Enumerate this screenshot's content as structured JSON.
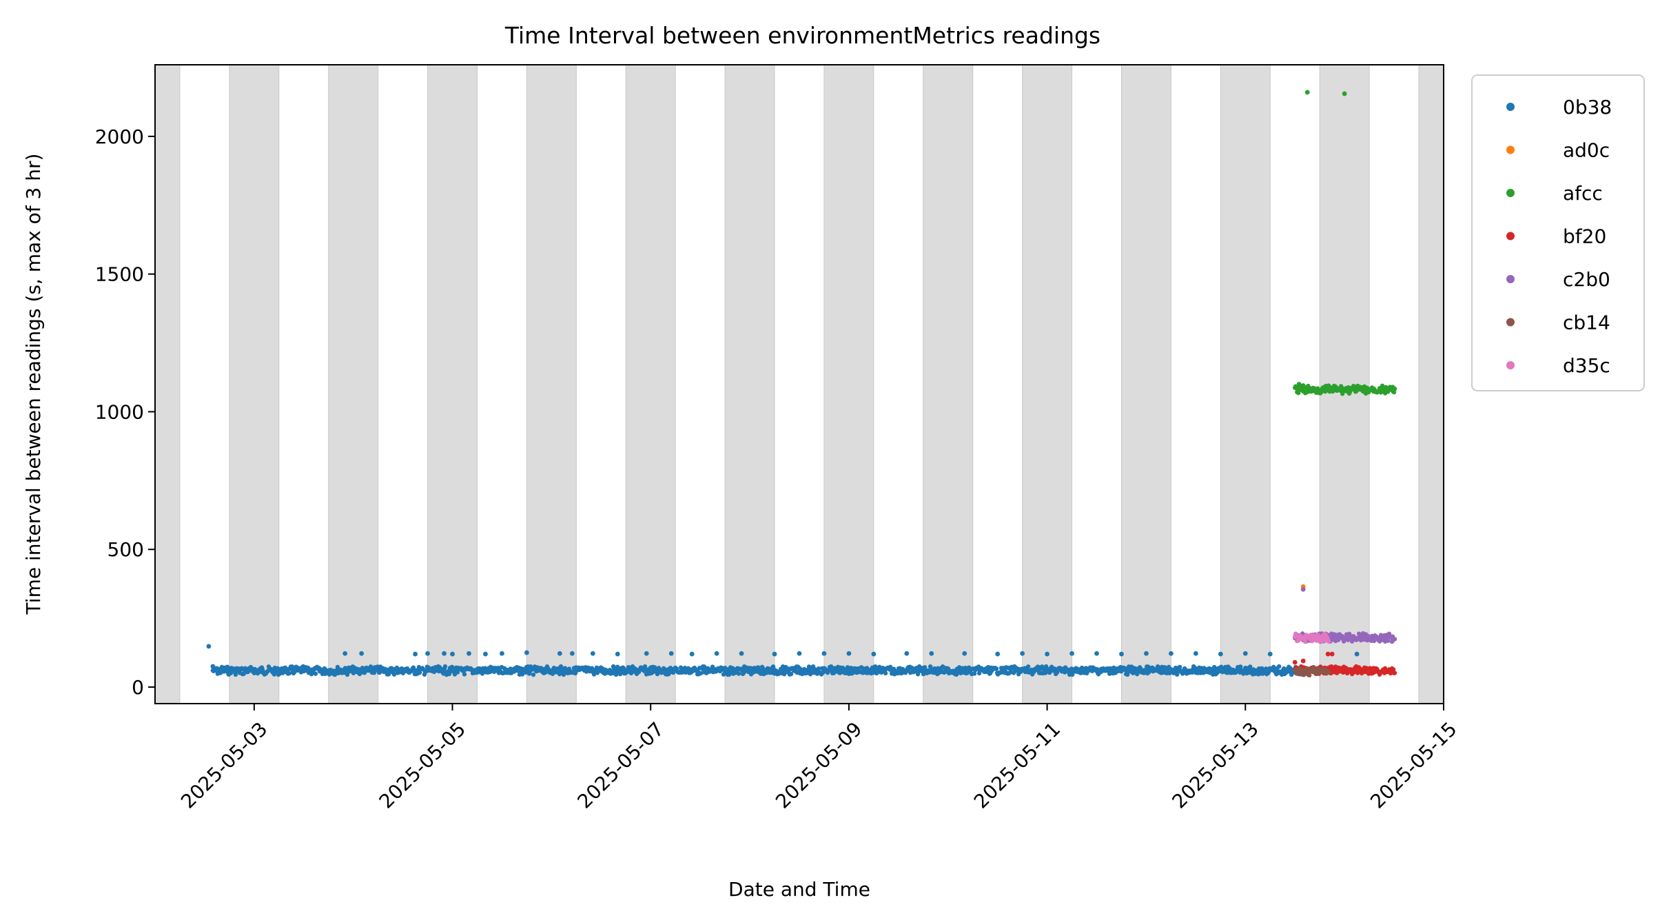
{
  "chart_data": {
    "type": "scatter",
    "title": "Time Interval between environmentMetrics readings",
    "xlabel": "Date and Time",
    "ylabel": "Time interval between readings (s, max of 3 hr)",
    "x_type": "datetime",
    "xlim": [
      "2025-05-02T00:00",
      "2025-05-15T00:00"
    ],
    "ylim": [
      -60,
      2260
    ],
    "xticks": [
      "2025-05-03",
      "2025-05-05",
      "2025-05-07",
      "2025-05-09",
      "2025-05-11",
      "2025-05-13",
      "2025-05-15"
    ],
    "yticks": [
      0,
      500,
      1000,
      1500,
      2000
    ],
    "grid": false,
    "legend_position": "outside upper right",
    "night_shading": {
      "color": "#dcdcdc",
      "bands": [
        [
          "2025-05-02T00:00",
          "2025-05-02T06:00"
        ],
        [
          "2025-05-02T18:00",
          "2025-05-03T06:00"
        ],
        [
          "2025-05-03T18:00",
          "2025-05-04T06:00"
        ],
        [
          "2025-05-04T18:00",
          "2025-05-05T06:00"
        ],
        [
          "2025-05-05T18:00",
          "2025-05-06T06:00"
        ],
        [
          "2025-05-06T18:00",
          "2025-05-07T06:00"
        ],
        [
          "2025-05-07T18:00",
          "2025-05-08T06:00"
        ],
        [
          "2025-05-08T18:00",
          "2025-05-09T06:00"
        ],
        [
          "2025-05-09T18:00",
          "2025-05-10T06:00"
        ],
        [
          "2025-05-10T18:00",
          "2025-05-11T06:00"
        ],
        [
          "2025-05-11T18:00",
          "2025-05-12T06:00"
        ],
        [
          "2025-05-12T18:00",
          "2025-05-13T06:00"
        ],
        [
          "2025-05-13T18:00",
          "2025-05-14T06:00"
        ],
        [
          "2025-05-14T18:00",
          "2025-05-15T00:00"
        ]
      ]
    },
    "series": [
      {
        "name": "0b38",
        "color": "#1f77b4",
        "dense_band": {
          "from": "2025-05-02T14:00",
          "to": "2025-05-13T13:00",
          "y": 60
        },
        "points": [
          [
            "2025-05-02T13:00",
            148
          ],
          [
            "2025-05-02T14:00",
            75
          ],
          [
            "2025-05-03T22:00",
            122
          ],
          [
            "2025-05-04T02:00",
            122
          ],
          [
            "2025-05-04T15:00",
            120
          ],
          [
            "2025-05-04T18:00",
            122
          ],
          [
            "2025-05-04T22:00",
            122
          ],
          [
            "2025-05-05T00:00",
            120
          ],
          [
            "2025-05-05T04:00",
            122
          ],
          [
            "2025-05-05T08:00",
            120
          ],
          [
            "2025-05-05T12:00",
            122
          ],
          [
            "2025-05-05T18:00",
            125
          ],
          [
            "2025-05-06T02:00",
            122
          ],
          [
            "2025-05-06T05:00",
            122
          ],
          [
            "2025-05-06T10:00",
            122
          ],
          [
            "2025-05-06T16:00",
            120
          ],
          [
            "2025-05-06T23:00",
            122
          ],
          [
            "2025-05-07T05:00",
            122
          ],
          [
            "2025-05-07T10:00",
            120
          ],
          [
            "2025-05-07T16:00",
            122
          ],
          [
            "2025-05-07T22:00",
            122
          ],
          [
            "2025-05-08T06:00",
            120
          ],
          [
            "2025-05-08T12:00",
            122
          ],
          [
            "2025-05-08T18:00",
            122
          ],
          [
            "2025-05-09T00:00",
            122
          ],
          [
            "2025-05-09T06:00",
            120
          ],
          [
            "2025-05-09T14:00",
            122
          ],
          [
            "2025-05-09T20:00",
            122
          ],
          [
            "2025-05-10T04:00",
            122
          ],
          [
            "2025-05-10T12:00",
            120
          ],
          [
            "2025-05-10T18:00",
            122
          ],
          [
            "2025-05-11T00:00",
            120
          ],
          [
            "2025-05-11T06:00",
            122
          ],
          [
            "2025-05-11T12:00",
            122
          ],
          [
            "2025-05-11T18:00",
            120
          ],
          [
            "2025-05-12T00:00",
            122
          ],
          [
            "2025-05-12T06:00",
            122
          ],
          [
            "2025-05-12T12:00",
            122
          ],
          [
            "2025-05-12T18:00",
            120
          ],
          [
            "2025-05-13T00:00",
            122
          ],
          [
            "2025-05-13T06:00",
            120
          ],
          [
            "2025-05-14T03:00",
            120
          ]
        ]
      },
      {
        "name": "ad0c",
        "color": "#ff7f0e",
        "points": [
          [
            "2025-05-13T14:00",
            365
          ]
        ]
      },
      {
        "name": "afcc",
        "color": "#2ca02c",
        "dense_band": {
          "from": "2025-05-13T12:00",
          "to": "2025-05-14T12:00",
          "y": 1080
        },
        "points": [
          [
            "2025-05-13T15:00",
            2160
          ],
          [
            "2025-05-14T00:00",
            2155
          ],
          [
            "2025-05-13T13:00",
            1100
          ],
          [
            "2025-05-13T14:00",
            1095
          ]
        ]
      },
      {
        "name": "bf20",
        "color": "#d62728",
        "dense_band": {
          "from": "2025-05-13T12:00",
          "to": "2025-05-14T12:00",
          "y": 60
        },
        "points": [
          [
            "2025-05-13T12:00",
            90
          ],
          [
            "2025-05-13T14:00",
            95
          ],
          [
            "2025-05-13T20:00",
            120
          ],
          [
            "2025-05-13T21:00",
            120
          ]
        ]
      },
      {
        "name": "c2b0",
        "color": "#9467bd",
        "dense_band": {
          "from": "2025-05-13T12:00",
          "to": "2025-05-14T12:00",
          "y": 180
        },
        "points": [
          [
            "2025-05-13T14:00",
            355
          ]
        ]
      },
      {
        "name": "cb14",
        "color": "#8c564b",
        "dense_band": {
          "from": "2025-05-13T12:00",
          "to": "2025-05-13T20:00",
          "y": 58
        },
        "points": []
      },
      {
        "name": "d35c",
        "color": "#e377c2",
        "dense_band": {
          "from": "2025-05-13T12:00",
          "to": "2025-05-13T20:00",
          "y": 180
        },
        "points": []
      }
    ]
  }
}
